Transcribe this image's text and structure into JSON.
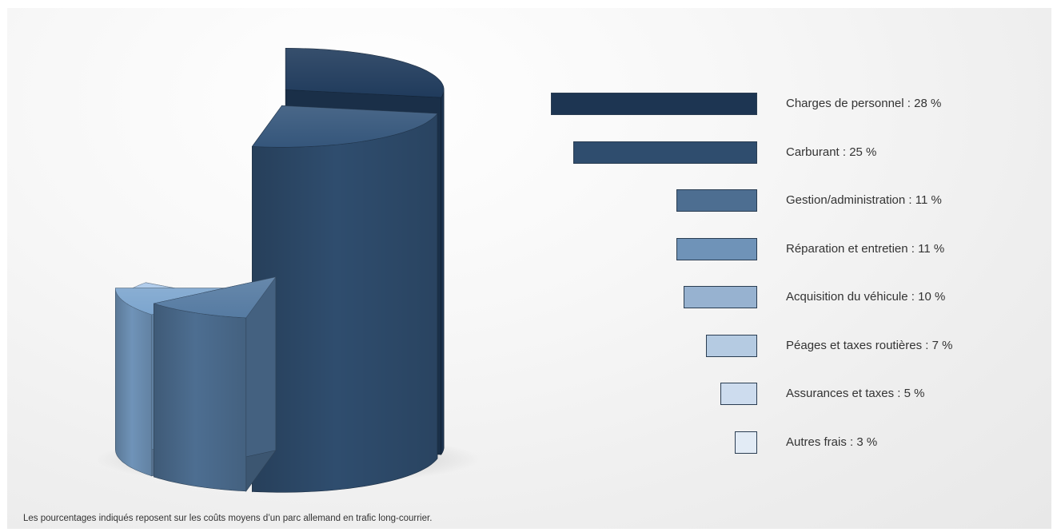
{
  "chart_data": {
    "type": "pie",
    "categories": [
      "Charges de personnel : 28 %",
      "Carburant : 25 %",
      "Gestion/administration : 11 %",
      "Réparation et entretien : 11 %",
      "Acquisition du véhicule : 10 %",
      "Péages et taxes routières : 7 %",
      "Assurances et taxes : 5 %",
      "Autres frais : 3 %"
    ],
    "values": [
      28,
      25,
      11,
      11,
      10,
      7,
      5,
      3
    ],
    "colors": [
      "#1d3552",
      "#2f4d6e",
      "#4d6e91",
      "#6f93b8",
      "#97b2d0",
      "#b5cbe2",
      "#cddcee",
      "#e2ebf5"
    ],
    "title": "",
    "legend_placement": "right",
    "style": "3d-exploded-cylinder"
  },
  "footnote": "Les pourcentages indiqués reposent sur les coûts moyens d’un parc allemand en trafic long-courrier."
}
